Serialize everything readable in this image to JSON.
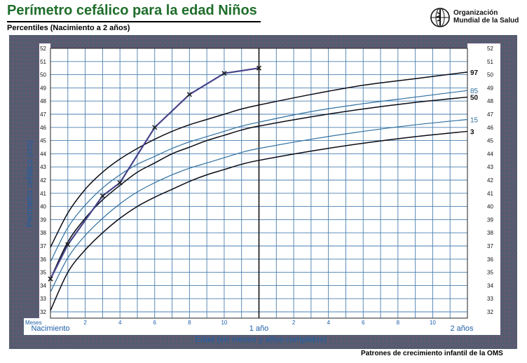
{
  "header": {
    "title": "Perímetro cefálico para la edad  Niños",
    "subtitle": "Percentiles (Nacimiento a 2 años)",
    "org_line1": "Organización",
    "org_line2": "Mundial de la Salud",
    "logo_icon": "who-emblem-icon"
  },
  "footer": "Patrones de crecimiento infantil de la OMS",
  "colors": {
    "frame": "#5a4a6e",
    "grid": "#4a7fb0",
    "text_blue": "#1d5fa8",
    "curve_dark": "#0a0a14",
    "curve_blue": "#2e6fa0",
    "plotted": "#46428a"
  },
  "chart_data": {
    "type": "line",
    "title": "Perímetro cefálico para la edad  Niños",
    "subtitle": "Percentiles (Nacimiento a 2 años)",
    "xlabel": "Edad (en meses y años cumplidos)",
    "ylabel": "Perímetro cefálico (cm)",
    "xlim": [
      0,
      24
    ],
    "ylim": [
      32,
      52
    ],
    "y_ticks": [
      32,
      33,
      34,
      35,
      36,
      37,
      38,
      39,
      40,
      41,
      42,
      43,
      44,
      45,
      46,
      47,
      48,
      49,
      50,
      51,
      52
    ],
    "x_month_tick_label": "Meses",
    "x_tick_labels": [
      {
        "month": 0,
        "label": "Nacimiento",
        "major": true
      },
      {
        "month": 2,
        "label": "2",
        "major": false
      },
      {
        "month": 4,
        "label": "4",
        "major": false
      },
      {
        "month": 6,
        "label": "6",
        "major": false
      },
      {
        "month": 8,
        "label": "8",
        "major": false
      },
      {
        "month": 10,
        "label": "10",
        "major": false
      },
      {
        "month": 12,
        "label": "1 año",
        "major": true
      },
      {
        "month": 14,
        "label": "2",
        "major": false
      },
      {
        "month": 16,
        "label": "4",
        "major": false
      },
      {
        "month": 18,
        "label": "6",
        "major": false
      },
      {
        "month": 20,
        "label": "8",
        "major": false
      },
      {
        "month": 22,
        "label": "10",
        "major": false
      },
      {
        "month": 24,
        "label": "2 años",
        "major": true
      }
    ],
    "grid": true,
    "series": [
      {
        "name": "97",
        "color": "dark",
        "x": [
          0,
          1,
          2,
          3,
          4,
          5,
          6,
          7,
          8,
          9,
          10,
          11,
          12,
          15,
          18,
          21,
          24
        ],
        "y": [
          36.9,
          39.5,
          41.3,
          42.6,
          43.6,
          44.4,
          45.1,
          45.7,
          46.2,
          46.6,
          47.0,
          47.4,
          47.7,
          48.5,
          49.2,
          49.7,
          50.2
        ]
      },
      {
        "name": "85",
        "color": "blue",
        "x": [
          0,
          1,
          2,
          3,
          4,
          5,
          6,
          7,
          8,
          9,
          10,
          11,
          12,
          15,
          18,
          21,
          24
        ],
        "y": [
          35.8,
          38.4,
          40.1,
          41.4,
          42.4,
          43.2,
          43.8,
          44.4,
          44.9,
          45.3,
          45.7,
          46.1,
          46.4,
          47.2,
          47.8,
          48.3,
          48.8
        ]
      },
      {
        "name": "50",
        "color": "dark",
        "x": [
          0,
          1,
          2,
          3,
          4,
          5,
          6,
          7,
          8,
          9,
          10,
          11,
          12,
          15,
          18,
          21,
          24
        ],
        "y": [
          34.5,
          37.3,
          39.1,
          40.5,
          41.6,
          42.6,
          43.3,
          44.0,
          44.5,
          45.0,
          45.4,
          45.8,
          46.1,
          46.8,
          47.4,
          47.9,
          48.3
        ]
      },
      {
        "name": "15",
        "color": "blue",
        "x": [
          0,
          1,
          2,
          3,
          4,
          5,
          6,
          7,
          8,
          9,
          10,
          11,
          12,
          15,
          18,
          21,
          24
        ],
        "y": [
          33.5,
          36.1,
          37.8,
          39.1,
          40.2,
          41.1,
          41.8,
          42.4,
          42.9,
          43.3,
          43.7,
          44.1,
          44.4,
          45.1,
          45.7,
          46.2,
          46.6
        ]
      },
      {
        "name": "3",
        "color": "dark",
        "x": [
          0,
          1,
          2,
          3,
          4,
          5,
          6,
          7,
          8,
          9,
          10,
          11,
          12,
          15,
          18,
          21,
          24
        ],
        "y": [
          32.1,
          35.0,
          36.7,
          38.0,
          39.1,
          40.0,
          40.7,
          41.3,
          41.9,
          42.4,
          42.8,
          43.2,
          43.5,
          44.2,
          44.8,
          45.3,
          45.7
        ]
      }
    ],
    "plotted_points": {
      "x": [
        0,
        1,
        3,
        4,
        6,
        8,
        10,
        12
      ],
      "y": [
        34.5,
        37.1,
        40.8,
        41.8,
        46.0,
        48.5,
        50.1,
        50.5
      ]
    }
  }
}
